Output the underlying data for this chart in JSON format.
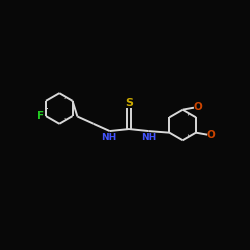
{
  "background_color": "#080808",
  "bond_color": "#d8d8d8",
  "atom_F_color": "#22cc22",
  "atom_N_color": "#4455ff",
  "atom_S_color": "#ccaa00",
  "atom_O_color": "#cc4400",
  "bond_lw": 1.4,
  "figsize": [
    2.5,
    2.5
  ],
  "dpi": 100,
  "xlim": [
    -3.2,
    3.0
  ],
  "ylim": [
    -1.4,
    1.6
  ]
}
